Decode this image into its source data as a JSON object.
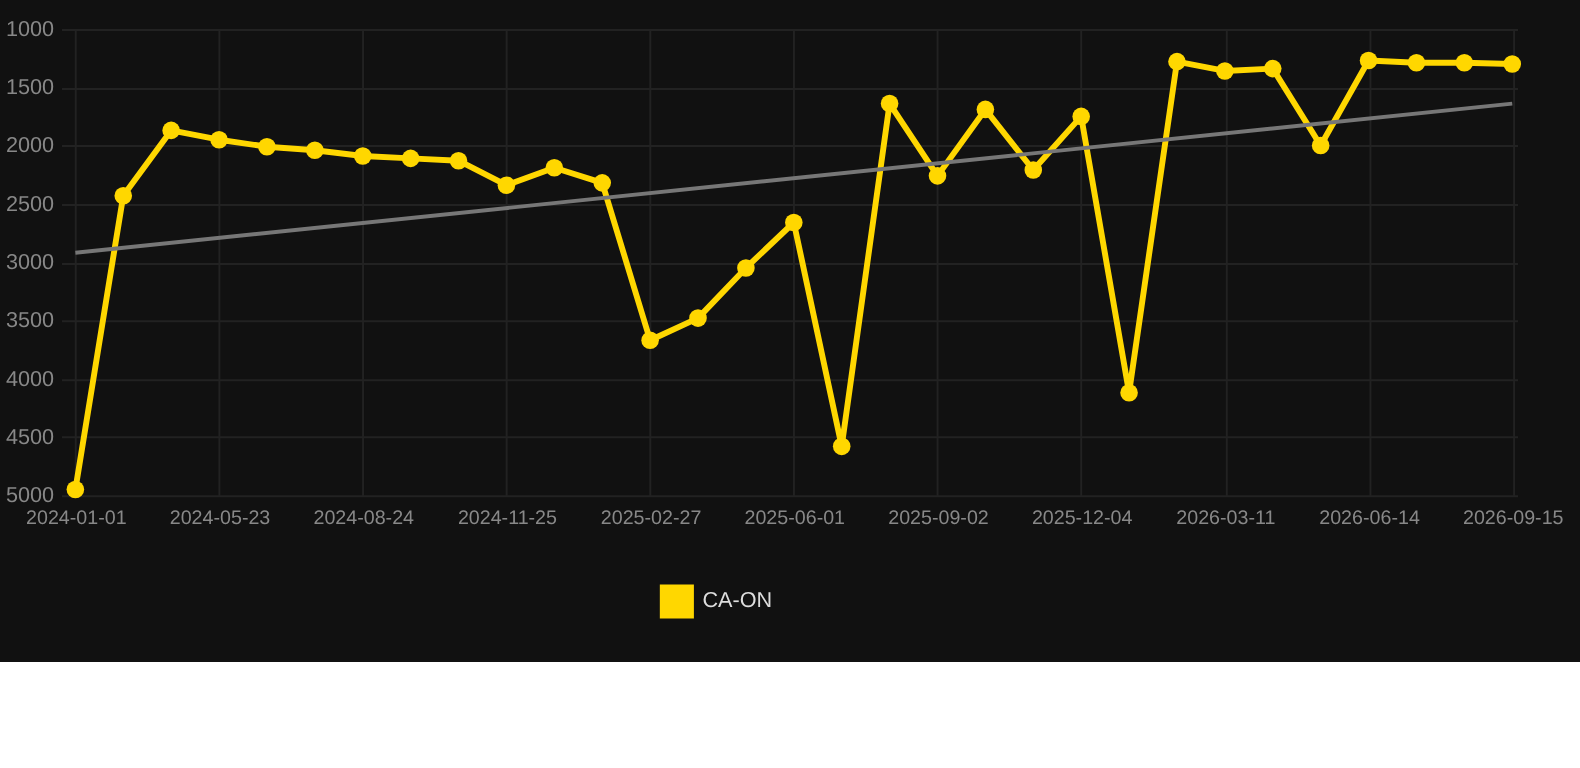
{
  "chart_data": {
    "type": "line",
    "categories": [
      "2024-01-01",
      null,
      null,
      "2024-05-23",
      null,
      null,
      "2024-08-24",
      null,
      null,
      "2024-11-25",
      null,
      null,
      "2025-02-27",
      null,
      null,
      "2025-06-01",
      null,
      null,
      "2025-09-02",
      null,
      null,
      "2025-12-04",
      null,
      null,
      "2026-03-11",
      null,
      null,
      "2026-06-14",
      null,
      null,
      "2026-09-15"
    ],
    "series": [
      {
        "name": "CA-ON",
        "color": "#ffd700",
        "marker": "circle",
        "values": [
          4950,
          2430,
          1870,
          1950,
          2010,
          2040,
          2090,
          2110,
          2130,
          2340,
          2190,
          2320,
          3670,
          3480,
          3050,
          2660,
          4580,
          1640,
          2260,
          1690,
          2210,
          1750,
          4120,
          1280,
          1360,
          1340,
          2000,
          1270,
          1290,
          1290,
          1300
        ]
      },
      {
        "type": "line",
        "color": "#777777",
        "marker": "none",
        "values": [
          2920,
          null,
          null,
          null,
          null,
          null,
          null,
          null,
          null,
          null,
          null,
          null,
          null,
          null,
          null,
          null,
          null,
          null,
          null,
          null,
          null,
          null,
          null,
          null,
          null,
          null,
          null,
          null,
          null,
          null,
          1640
        ]
      }
    ],
    "ylim": [
      5000,
      1000
    ],
    "yticks": [
      1000,
      1500,
      2000,
      2500,
      3000,
      3500,
      4000,
      4500,
      5000
    ],
    "grid": true,
    "legend": "bottom",
    "line_style": "solid"
  }
}
